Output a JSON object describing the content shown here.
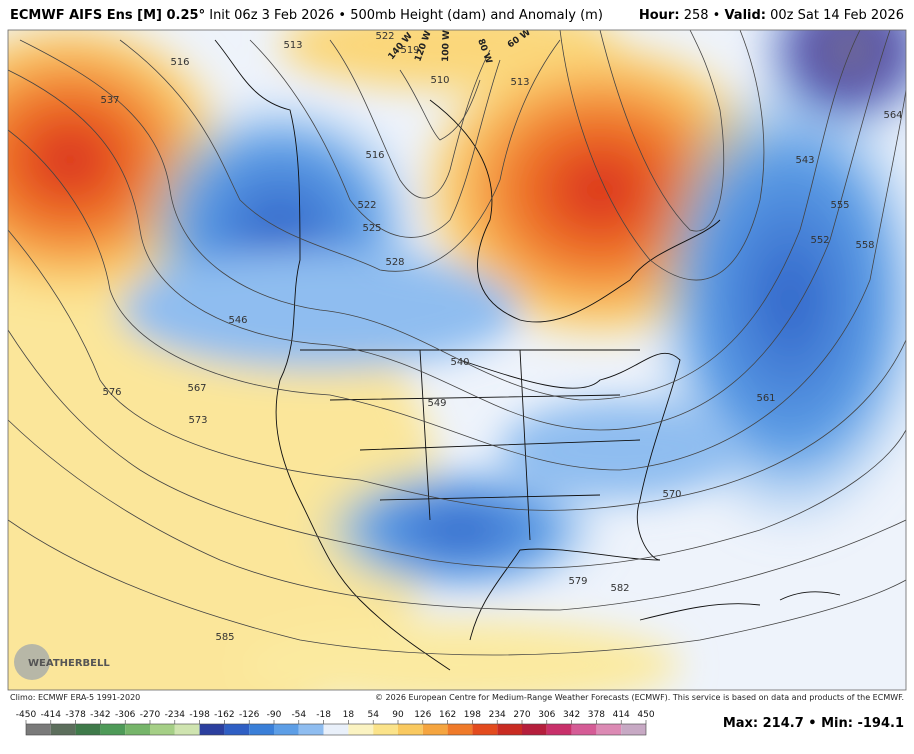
{
  "header": {
    "title_bold": "ECMWF AIFS Ens [M] 0.25°",
    "title_rest": "Init 06z 3 Feb 2026 • 500mb Height (dam) and Anomaly (m)",
    "hour_label": "Hour:",
    "hour_value": "258 •",
    "valid_label": "Valid:",
    "valid_value": "00z Sat 14 Feb 2026"
  },
  "map": {
    "contour_labels": [
      "516",
      "537",
      "513",
      "522",
      "519",
      "510",
      "513",
      "516",
      "522",
      "525",
      "528",
      "546",
      "540",
      "549",
      "543",
      "555",
      "552",
      "558",
      "564",
      "561",
      "570",
      "567",
      "576",
      "573",
      "579",
      "582",
      "585"
    ],
    "meridian_labels": [
      "140 W",
      "120 W",
      "100 W",
      "80 W",
      "60 W"
    ],
    "logo": "WEATHERBELL"
  },
  "footer": {
    "climo": "Climo: ECMWF ERA-5 1991-2020",
    "copyright": "© 2026 European Centre for Medium-Range Weather Forecasts (ECMWF). This service is based on data and products of the ECMWF."
  },
  "colorbar": {
    "ticks": [
      -450,
      -414,
      -378,
      -342,
      -306,
      -270,
      -234,
      -198,
      -162,
      -126,
      -90,
      -54,
      -18,
      18,
      54,
      90,
      126,
      162,
      198,
      234,
      270,
      306,
      342,
      378,
      414,
      450
    ],
    "colors": [
      "#7a7a7a",
      "#5c6e5c",
      "#3f7a4a",
      "#4e9a58",
      "#76b56a",
      "#a5cf86",
      "#cfe4b0",
      "#2b3f9e",
      "#2f5fc4",
      "#3a7fd8",
      "#5d9ee6",
      "#8fbdf0",
      "#e9f0fa",
      "#fbf3c2",
      "#fbe38a",
      "#f9c960",
      "#f5a540",
      "#ef7a2a",
      "#e34b1e",
      "#c92b22",
      "#b51e3c",
      "#c8306a",
      "#d55c96",
      "#dc8ab4",
      "#c7a9c4"
    ],
    "max_min": "Max: 214.7 • Min: -194.1"
  }
}
